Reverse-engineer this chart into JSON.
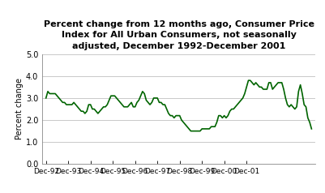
{
  "title": "Percent change from 12 months ago, Consumer Price\nIndex for All Urban Consumers, not seasonally\nadjusted, December 1992-December 2001",
  "ylabel": "Percent change",
  "line_color": "#006400",
  "line_width": 1.2,
  "ylim": [
    0.0,
    5.0
  ],
  "yticks": [
    0.0,
    1.0,
    2.0,
    3.0,
    4.0,
    5.0
  ],
  "xtick_labels": [
    "Dec-92",
    "Dec-93",
    "Dec-94",
    "Dec-95",
    "Dec-96",
    "Dec-97",
    "Dec-98",
    "Dec-99",
    "Dec-00",
    "Dec-01"
  ],
  "background_color": "#ffffff",
  "values": [
    3.0,
    3.3,
    3.2,
    3.2,
    3.2,
    3.2,
    3.1,
    3.0,
    2.9,
    2.8,
    2.8,
    2.7,
    2.7,
    2.7,
    2.7,
    2.8,
    2.7,
    2.6,
    2.5,
    2.4,
    2.4,
    2.3,
    2.4,
    2.7,
    2.7,
    2.5,
    2.5,
    2.4,
    2.3,
    2.4,
    2.5,
    2.6,
    2.6,
    2.7,
    2.9,
    3.1,
    3.1,
    3.1,
    3.0,
    2.9,
    2.8,
    2.7,
    2.6,
    2.6,
    2.6,
    2.7,
    2.8,
    2.6,
    2.6,
    2.8,
    2.9,
    3.1,
    3.3,
    3.2,
    2.9,
    2.8,
    2.7,
    2.8,
    3.0,
    3.0,
    3.0,
    2.8,
    2.8,
    2.7,
    2.7,
    2.5,
    2.3,
    2.2,
    2.2,
    2.1,
    2.2,
    2.2,
    2.2,
    2.0,
    1.9,
    1.8,
    1.7,
    1.6,
    1.5,
    1.5,
    1.5,
    1.5,
    1.5,
    1.5,
    1.6,
    1.6,
    1.6,
    1.6,
    1.6,
    1.7,
    1.7,
    1.7,
    1.9,
    2.2,
    2.2,
    2.1,
    2.2,
    2.1,
    2.2,
    2.4,
    2.5,
    2.5,
    2.6,
    2.7,
    2.8,
    2.9,
    3.0,
    3.2,
    3.5,
    3.8,
    3.8,
    3.7,
    3.6,
    3.7,
    3.6,
    3.5,
    3.5,
    3.4,
    3.4,
    3.4,
    3.7,
    3.7,
    3.4,
    3.5,
    3.6,
    3.7,
    3.7,
    3.7,
    3.4,
    3.0,
    2.7,
    2.6,
    2.7,
    2.6,
    2.5,
    2.6,
    3.3,
    3.6,
    3.2,
    2.7,
    2.6,
    2.1,
    1.9,
    1.6
  ]
}
